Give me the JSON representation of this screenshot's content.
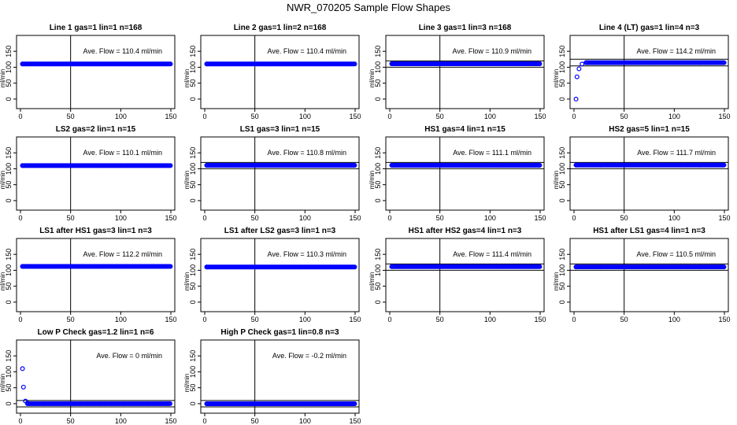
{
  "figure": {
    "title": "NWR_070205  Sample Flow Shapes"
  },
  "chart_data": [
    {
      "type": "scatter",
      "title": "Line 1 gas=1 lin=1 n=168",
      "ylabel": "ml/min",
      "xlim": [
        0,
        150
      ],
      "ylim": [
        -20,
        190
      ],
      "xticks": [
        0,
        50,
        100,
        150
      ],
      "yticks": [
        0,
        50,
        100,
        150
      ],
      "vline": 50,
      "hlines": [],
      "annotation": "Ave. Flow =  110.4  ml/min",
      "series": [
        {
          "x": [
            2,
            150
          ],
          "y": [
            110.4,
            110.4
          ],
          "mode": "band"
        }
      ],
      "color": "#0000ff"
    },
    {
      "type": "scatter",
      "title": "Line 2 gas=1 lin=2 n=168",
      "ylabel": "ml/min",
      "xlim": [
        0,
        150
      ],
      "ylim": [
        -20,
        190
      ],
      "xticks": [
        0,
        50,
        100,
        150
      ],
      "yticks": [
        0,
        50,
        100,
        150
      ],
      "vline": 50,
      "hlines": [],
      "annotation": "Ave. Flow =  110.4  ml/min",
      "series": [
        {
          "x": [
            2,
            150
          ],
          "y": [
            110.4,
            110.4
          ],
          "mode": "band"
        }
      ],
      "color": "#0000ff"
    },
    {
      "type": "scatter",
      "title": "Line 3 gas=1 lin=3 n=168",
      "ylabel": "ml/min",
      "xlim": [
        0,
        150
      ],
      "ylim": [
        -20,
        190
      ],
      "xticks": [
        0,
        50,
        100,
        150
      ],
      "yticks": [
        0,
        50,
        100,
        150
      ],
      "vline": 50,
      "hlines": [
        120,
        100
      ],
      "annotation": "Ave. Flow =  110.9  ml/min",
      "series": [
        {
          "x": [
            2,
            150
          ],
          "y": [
            110.9,
            110.9
          ],
          "mode": "band"
        }
      ],
      "color": "#0000ff"
    },
    {
      "type": "scatter",
      "title": "Line 4 (LT) gas=1 lin=4 n=3",
      "ylabel": "ml/min",
      "xlim": [
        0,
        150
      ],
      "ylim": [
        -20,
        190
      ],
      "xticks": [
        0,
        50,
        100,
        150
      ],
      "yticks": [
        0,
        50,
        100,
        150
      ],
      "vline": 50,
      "hlines": [
        125,
        104
      ],
      "annotation": "Ave. Flow =  114.2  ml/min",
      "series": [
        {
          "x": [
            2,
            3,
            5,
            8,
            12,
            150
          ],
          "y": [
            0,
            70,
            95,
            110,
            114.2,
            114.2
          ],
          "mode": "band"
        }
      ],
      "color": "#0000ff"
    },
    {
      "type": "scatter",
      "title": "LS2 gas=2 lin=1 n=15",
      "ylabel": "ml/min",
      "xlim": [
        0,
        150
      ],
      "ylim": [
        -20,
        190
      ],
      "xticks": [
        0,
        50,
        100,
        150
      ],
      "yticks": [
        0,
        50,
        100,
        150
      ],
      "vline": 50,
      "hlines": [],
      "annotation": "Ave. Flow =  110.1  ml/min",
      "series": [
        {
          "x": [
            2,
            150
          ],
          "y": [
            110.1,
            110.1
          ],
          "mode": "band"
        }
      ],
      "color": "#0000ff"
    },
    {
      "type": "scatter",
      "title": "LS1 gas=3 lin=1 n=15",
      "ylabel": "ml/min",
      "xlim": [
        0,
        150
      ],
      "ylim": [
        -20,
        190
      ],
      "xticks": [
        0,
        50,
        100,
        150
      ],
      "yticks": [
        0,
        50,
        100,
        150
      ],
      "vline": 50,
      "hlines": [
        120,
        100
      ],
      "annotation": "Ave. Flow =  110.8  ml/min",
      "series": [
        {
          "x": [
            2,
            150
          ],
          "y": [
            110.8,
            110.8
          ],
          "mode": "band"
        }
      ],
      "color": "#0000ff"
    },
    {
      "type": "scatter",
      "title": "HS1 gas=4 lin=1 n=15",
      "ylabel": "ml/min",
      "xlim": [
        0,
        150
      ],
      "ylim": [
        -20,
        190
      ],
      "xticks": [
        0,
        50,
        100,
        150
      ],
      "yticks": [
        0,
        50,
        100,
        150
      ],
      "vline": 50,
      "hlines": [
        120,
        100
      ],
      "annotation": "Ave. Flow =  111.1  ml/min",
      "series": [
        {
          "x": [
            2,
            150
          ],
          "y": [
            111.1,
            111.1
          ],
          "mode": "band"
        }
      ],
      "color": "#0000ff"
    },
    {
      "type": "scatter",
      "title": "HS2 gas=5 lin=1 n=15",
      "ylabel": "ml/min",
      "xlim": [
        0,
        150
      ],
      "ylim": [
        -20,
        190
      ],
      "xticks": [
        0,
        50,
        100,
        150
      ],
      "yticks": [
        0,
        50,
        100,
        150
      ],
      "vline": 50,
      "hlines": [
        120,
        100
      ],
      "annotation": "Ave. Flow =  111.7  ml/min",
      "series": [
        {
          "x": [
            2,
            150
          ],
          "y": [
            111.7,
            111.7
          ],
          "mode": "band"
        }
      ],
      "color": "#0000ff"
    },
    {
      "type": "scatter",
      "title": "LS1 after HS1 gas=3 lin=1 n=3",
      "ylabel": "ml/min",
      "xlim": [
        0,
        150
      ],
      "ylim": [
        -20,
        190
      ],
      "xticks": [
        0,
        50,
        100,
        150
      ],
      "yticks": [
        0,
        50,
        100,
        150
      ],
      "vline": 50,
      "hlines": [],
      "annotation": "Ave. Flow =  112.2  ml/min",
      "series": [
        {
          "x": [
            2,
            150
          ],
          "y": [
            112.2,
            112.2
          ],
          "mode": "band"
        }
      ],
      "color": "#0000ff"
    },
    {
      "type": "scatter",
      "title": "LS1 after LS2 gas=3 lin=1 n=3",
      "ylabel": "ml/min",
      "xlim": [
        0,
        150
      ],
      "ylim": [
        -20,
        190
      ],
      "xticks": [
        0,
        50,
        100,
        150
      ],
      "yticks": [
        0,
        50,
        100,
        150
      ],
      "vline": 50,
      "hlines": [],
      "annotation": "Ave. Flow =  110.3  ml/min",
      "series": [
        {
          "x": [
            2,
            150
          ],
          "y": [
            110.3,
            110.3
          ],
          "mode": "band"
        }
      ],
      "color": "#0000ff"
    },
    {
      "type": "scatter",
      "title": "HS1 after HS2 gas=4 lin=1 n=3",
      "ylabel": "ml/min",
      "xlim": [
        0,
        150
      ],
      "ylim": [
        -20,
        190
      ],
      "xticks": [
        0,
        50,
        100,
        150
      ],
      "yticks": [
        0,
        50,
        100,
        150
      ],
      "vline": 50,
      "hlines": [
        120,
        100
      ],
      "annotation": "Ave. Flow =  111.4  ml/min",
      "series": [
        {
          "x": [
            2,
            150
          ],
          "y": [
            111.4,
            111.4
          ],
          "mode": "band"
        }
      ],
      "color": "#0000ff"
    },
    {
      "type": "scatter",
      "title": "HS1 after LS1 gas=4 lin=1 n=3",
      "ylabel": "ml/min",
      "xlim": [
        0,
        150
      ],
      "ylim": [
        -20,
        190
      ],
      "xticks": [
        0,
        50,
        100,
        150
      ],
      "yticks": [
        0,
        50,
        100,
        150
      ],
      "vline": 50,
      "hlines": [
        120,
        100
      ],
      "annotation": "Ave. Flow =  110.5  ml/min",
      "series": [
        {
          "x": [
            2,
            150
          ],
          "y": [
            110.5,
            110.5
          ],
          "mode": "band"
        }
      ],
      "color": "#0000ff"
    },
    {
      "type": "scatter",
      "title": "Low P Check gas=1.2 lin=1 n=6",
      "ylabel": "ml/min",
      "xlim": [
        0,
        150
      ],
      "ylim": [
        -20,
        190
      ],
      "xticks": [
        0,
        50,
        100,
        150
      ],
      "yticks": [
        0,
        50,
        100,
        150
      ],
      "vline": 50,
      "hlines": [
        10,
        -10
      ],
      "annotation": "Ave. Flow =  0  ml/min",
      "series": [
        {
          "x": [
            2,
            3,
            5,
            7,
            150
          ],
          "y": [
            110,
            52,
            8,
            2,
            0
          ],
          "mode": "band"
        }
      ],
      "color": "#0000ff"
    },
    {
      "type": "scatter",
      "title": "High P Check gas=1 lin=0.8 n=3",
      "ylabel": "ml/min",
      "xlim": [
        0,
        150
      ],
      "ylim": [
        -20,
        190
      ],
      "xticks": [
        0,
        50,
        100,
        150
      ],
      "yticks": [
        0,
        50,
        100,
        150
      ],
      "vline": 50,
      "hlines": [
        10,
        -10
      ],
      "annotation": "Ave. Flow =  -0.2  ml/min",
      "series": [
        {
          "x": [
            2,
            150
          ],
          "y": [
            -0.2,
            -0.2
          ],
          "mode": "band"
        }
      ],
      "color": "#0000ff"
    }
  ]
}
